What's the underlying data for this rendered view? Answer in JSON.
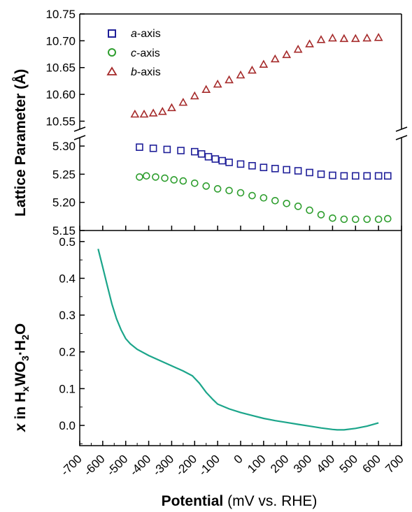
{
  "chart_data": [
    {
      "type": "scatter",
      "panel": "top",
      "ylabel": "Lattice Parameter (Å)",
      "axis_break": true,
      "upper_ylim": [
        10.535,
        10.75
      ],
      "upper_yticks": [
        "10.55",
        "10.60",
        "10.65",
        "10.70",
        "10.75"
      ],
      "lower_ylim": [
        5.15,
        5.315
      ],
      "lower_yticks": [
        "5.15",
        "5.20",
        "5.25",
        "5.30"
      ],
      "xlim": [
        -700,
        700
      ],
      "grid": false,
      "legend_position": "top-left",
      "series": [
        {
          "name": "a-axis",
          "name_italic": "a",
          "name_rest": "-axis",
          "marker": "square",
          "color": "#1f1f99",
          "segment": "lower",
          "x": [
            -440,
            -380,
            -320,
            -260,
            -200,
            -170,
            -140,
            -110,
            -80,
            -50,
            0,
            50,
            100,
            150,
            200,
            250,
            300,
            350,
            400,
            450,
            500,
            550,
            600,
            640
          ],
          "y": [
            5.298,
            5.296,
            5.294,
            5.292,
            5.29,
            5.286,
            5.281,
            5.277,
            5.274,
            5.271,
            5.268,
            5.265,
            5.262,
            5.26,
            5.258,
            5.256,
            5.253,
            5.25,
            5.248,
            5.247,
            5.247,
            5.247,
            5.247,
            5.247
          ]
        },
        {
          "name": "c-axis",
          "name_italic": "c",
          "name_rest": "-axis",
          "marker": "circle",
          "color": "#2e9e2e",
          "segment": "lower",
          "x": [
            -440,
            -410,
            -370,
            -330,
            -290,
            -250,
            -200,
            -150,
            -100,
            -50,
            0,
            50,
            100,
            150,
            200,
            250,
            300,
            350,
            400,
            450,
            500,
            550,
            600,
            640
          ],
          "y": [
            5.245,
            5.247,
            5.245,
            5.243,
            5.24,
            5.238,
            5.234,
            5.229,
            5.224,
            5.221,
            5.217,
            5.212,
            5.208,
            5.203,
            5.198,
            5.193,
            5.186,
            5.178,
            5.172,
            5.17,
            5.17,
            5.17,
            5.17,
            5.171
          ]
        },
        {
          "name": "b-axis",
          "name_italic": "b",
          "name_rest": "-axis",
          "marker": "triangle",
          "color": "#a52a2a",
          "segment": "upper",
          "x": [
            -460,
            -420,
            -380,
            -340,
            -300,
            -250,
            -200,
            -150,
            -100,
            -50,
            0,
            50,
            100,
            150,
            200,
            250,
            300,
            350,
            400,
            450,
            500,
            550,
            600
          ],
          "y": [
            10.563,
            10.563,
            10.565,
            10.568,
            10.575,
            10.585,
            10.597,
            10.609,
            10.619,
            10.627,
            10.636,
            10.645,
            10.656,
            10.666,
            10.674,
            10.684,
            10.694,
            10.702,
            10.705,
            10.704,
            10.704,
            10.705,
            10.706
          ]
        }
      ]
    },
    {
      "type": "line",
      "panel": "bottom",
      "ylabel_prefix": "x",
      "ylabel_rest": " in H",
      "ylabel_sub_x": "x",
      "ylabel_mid": "WO",
      "ylabel_sub_3": "3",
      "ylabel_dot": "·H",
      "ylabel_sub_2": "2",
      "ylabel_end": "O",
      "xlabel_bold": "Potential",
      "xlabel_rest": " (mV vs. RHE)",
      "xlim": [
        -700,
        700
      ],
      "ylim": [
        -0.055,
        0.53
      ],
      "yticks": [
        "0.0",
        "0.1",
        "0.2",
        "0.3",
        "0.4",
        "0.5"
      ],
      "xticks": [
        "-700",
        "-600",
        "-500",
        "-400",
        "-300",
        "-200",
        "-100",
        "0",
        "100",
        "200",
        "300",
        "400",
        "500",
        "600",
        "700"
      ],
      "grid": false,
      "series": [
        {
          "color": "#1ba58a",
          "x": [
            -620,
            -600,
            -580,
            -560,
            -540,
            -520,
            -500,
            -480,
            -450,
            -400,
            -350,
            -300,
            -250,
            -210,
            -180,
            -150,
            -120,
            -100,
            -50,
            0,
            50,
            100,
            150,
            200,
            250,
            300,
            350,
            400,
            420,
            450,
            500,
            550,
            600
          ],
          "y": [
            0.48,
            0.43,
            0.38,
            0.33,
            0.29,
            0.26,
            0.236,
            0.222,
            0.207,
            0.19,
            0.176,
            0.162,
            0.148,
            0.135,
            0.115,
            0.09,
            0.07,
            0.058,
            0.045,
            0.035,
            0.027,
            0.019,
            0.013,
            0.008,
            0.003,
            -0.002,
            -0.007,
            -0.011,
            -0.012,
            -0.012,
            -0.008,
            -0.002,
            0.007
          ]
        }
      ]
    }
  ]
}
